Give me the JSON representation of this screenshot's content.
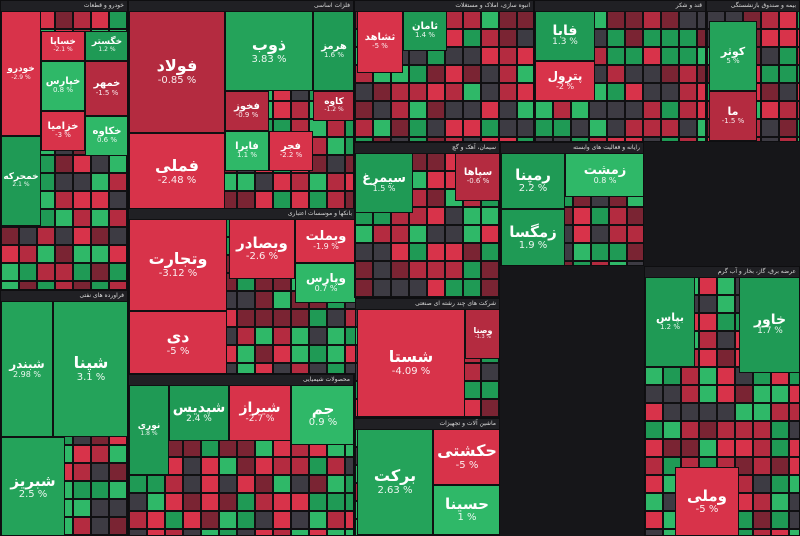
{
  "colors": {
    "pos_strong": "#1f9a55",
    "pos_mid": "#24a35a",
    "pos_light": "#2fb868",
    "neg_strong": "#d8334a",
    "neg_mid": "#b42b40",
    "neg_dark": "#7a2433",
    "neutral": "#3d3b43"
  },
  "chart_data": {
    "type": "treemap",
    "unit": "%",
    "sectors": [
      {
        "name": "خودرو و قطعات",
        "tiles": [
          {
            "name": "خودرو",
            "value": -2.9
          },
          {
            "name": "خساپا",
            "value": -2.1
          },
          {
            "name": "خگستر",
            "value": 1.2
          },
          {
            "name": "خپارس",
            "value": 0.8
          },
          {
            "name": "خمهر",
            "value": -1.5
          },
          {
            "name": "خزامیا",
            "value": -3.0
          },
          {
            "name": "خکاوه",
            "value": 0.6
          },
          {
            "name": "خمحرکه",
            "value": 2.1
          }
        ]
      },
      {
        "name": "فلزات اساسی",
        "tiles": [
          {
            "name": "فولاد",
            "value": -0.85
          },
          {
            "name": "فملی",
            "value": -2.48
          },
          {
            "name": "ذوب",
            "value": 3.83
          },
          {
            "name": "هرمز",
            "value": 1.6
          },
          {
            "name": "کاوه",
            "value": -1.2
          },
          {
            "name": "فخوز",
            "value": -0.9
          },
          {
            "name": "فایرا",
            "value": 1.1
          },
          {
            "name": "فجر",
            "value": -2.2
          }
        ]
      },
      {
        "name": "شرکت های چند رشته ای صنعتی",
        "tiles": [
          {
            "name": "شستا",
            "value": -4.09
          },
          {
            "name": "وصنا",
            "value": -1.3
          }
        ]
      },
      {
        "name": "بانکها و موسسات اعتباری",
        "tiles": [
          {
            "name": "وتجارت",
            "value": -3.12
          },
          {
            "name": "دی",
            "value": -5.0
          },
          {
            "name": "وبصادر",
            "value": -2.6
          },
          {
            "name": "وبملت",
            "value": -1.9
          },
          {
            "name": "وپارس",
            "value": 0.7
          }
        ]
      },
      {
        "name": "محصولات شیمیایی",
        "tiles": [
          {
            "name": "شپدیس",
            "value": 2.4
          },
          {
            "name": "شیراز",
            "value": -2.7
          },
          {
            "name": "نوری",
            "value": 1.8
          },
          {
            "name": "جم",
            "value": 0.9
          }
        ]
      },
      {
        "name": "فراورده های نفتی",
        "tiles": [
          {
            "name": "شبندر",
            "value": 2.98
          },
          {
            "name": "شپنا",
            "value": 3.1
          },
          {
            "name": "شبریز",
            "value": 2.5
          }
        ]
      },
      {
        "name": "رایانه و فعالیت های وابسته",
        "tiles": [
          {
            "name": "رمپنا",
            "value": 2.2
          },
          {
            "name": "زمگسا",
            "value": 1.9
          },
          {
            "name": "زمشت",
            "value": 0.8
          }
        ]
      },
      {
        "name": "سیمان، آهک و گچ",
        "tiles": [
          {
            "name": "سیمرغ",
            "value": 1.5
          },
          {
            "name": "سپاها",
            "value": -0.6
          }
        ]
      },
      {
        "name": "ماشین آلات و تجهیزات",
        "tiles": [
          {
            "name": "برکت",
            "value": 2.63
          },
          {
            "name": "حکشتی",
            "value": -5.0
          },
          {
            "name": "حسینا",
            "value": 1.0
          }
        ]
      },
      {
        "name": "انبوه سازی، املاک و مستغلات",
        "tiles": [
          {
            "name": "ثشاهد",
            "value": -5.0
          },
          {
            "name": "ثامان",
            "value": 1.4
          }
        ]
      },
      {
        "name": "بیمه و صندوق بازنشستگی",
        "tiles": [
          {
            "name": "کوثر",
            "value": 5.0
          },
          {
            "name": "ما",
            "value": -1.5
          }
        ]
      },
      {
        "name": "عرضه برق، گاز، بخار و آب گرم",
        "tiles": [
          {
            "name": "بپاس",
            "value": 1.2
          },
          {
            "name": "وملی",
            "value": -5.0
          },
          {
            "name": "خاور",
            "value": 1.7
          }
        ]
      },
      {
        "name": "قند و شکر",
        "tiles": [
          {
            "name": "فابا",
            "value": 1.3
          },
          {
            "name": "پترول",
            "value": -2.0
          }
        ]
      }
    ]
  }
}
